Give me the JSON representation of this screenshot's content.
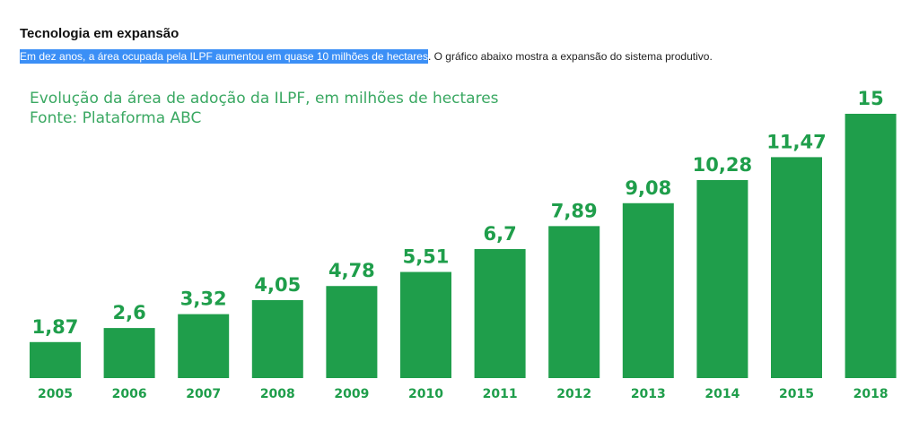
{
  "header": {
    "title": "Tecnologia em expansão"
  },
  "intro": {
    "highlighted": "Em dez anos, a área ocupada pela ILPF aumentou em quase 10 milhões de hectares",
    "rest": ". O gráfico abaixo mostra a expansão do sistema produtivo."
  },
  "chart_data": {
    "type": "bar",
    "title": "Evolução da área de adoção da ILPF, em milhões de hectares",
    "subtitle": "Fonte: Plataforma ABC",
    "categories": [
      "2005",
      "2006",
      "2007",
      "2008",
      "2009",
      "2010",
      "2011",
      "2012",
      "2013",
      "2014",
      "2015",
      "2018"
    ],
    "values": [
      1.87,
      2.6,
      3.32,
      4.05,
      4.78,
      5.51,
      6.7,
      7.89,
      9.08,
      10.28,
      11.47,
      15
    ],
    "value_labels": [
      "1,87",
      "2,6",
      "3,32",
      "4,05",
      "4,78",
      "5,51",
      "6,7",
      "7,89",
      "9,08",
      "10,28",
      "11,47",
      "15"
    ],
    "color": "#1f9e4b",
    "xlabel": "",
    "ylabel": ""
  }
}
